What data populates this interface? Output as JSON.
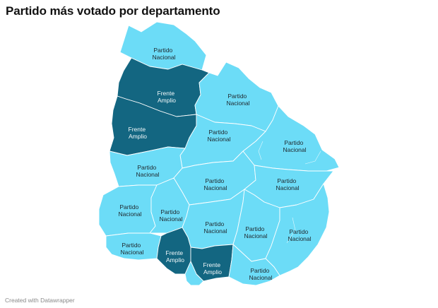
{
  "title": "Partido más votado por departamento",
  "footer": "Created with Datawrapper",
  "colors": {
    "partido_nacional": "#6cdcf7",
    "frente_amplio": "#136681",
    "label_dark": "#202a30",
    "label_light": "#f2f8fa"
  },
  "departments": [
    {
      "party": "Partido Nacional",
      "label": [
        "Partido",
        "Nacional"
      ]
    },
    {
      "party": "Frente Amplio",
      "label": [
        "Frente",
        "Amplio"
      ]
    },
    {
      "party": "Frente Amplio",
      "label": [
        "Frente",
        "Amplio"
      ]
    },
    {
      "party": "Partido Nacional",
      "label": [
        "Partido",
        "Nacional"
      ]
    },
    {
      "party": "Partido Nacional",
      "label": [
        "Partido",
        "Nacional"
      ]
    },
    {
      "party": "Partido Nacional",
      "label": [
        "Partido",
        "Nacional"
      ]
    },
    {
      "party": "Partido Nacional",
      "label": [
        "Partido",
        "Nacional"
      ]
    },
    {
      "party": "Partido Nacional",
      "label": [
        "Partido",
        "Nacional"
      ]
    },
    {
      "party": "Partido Nacional",
      "label": [
        "Partido",
        "Nacional"
      ]
    },
    {
      "party": "Partido Nacional",
      "label": [
        "Partido",
        "Nacional"
      ]
    },
    {
      "party": "Partido Nacional",
      "label": [
        "Partido",
        "Nacional"
      ]
    },
    {
      "party": "Partido Nacional",
      "label": [
        "Partido",
        "Nacional"
      ]
    },
    {
      "party": "Partido Nacional",
      "label": [
        "Partido",
        "Nacional"
      ]
    },
    {
      "party": "Partido Nacional",
      "label": [
        "Partido",
        "Nacional"
      ]
    },
    {
      "party": "Partido Nacional",
      "label": [
        "Partido",
        "Nacional"
      ]
    },
    {
      "party": "Partido Nacional",
      "label": [
        "Partido",
        "Nacional"
      ]
    },
    {
      "party": "Frente Amplio",
      "label": [
        "Frente",
        "Amplio"
      ]
    },
    {
      "party": "Frente Amplio",
      "label": [
        "Frente",
        "Amplio"
      ]
    },
    {
      "party": "Partido Nacional",
      "label": [
        "Partido",
        "Nacional"
      ]
    }
  ]
}
